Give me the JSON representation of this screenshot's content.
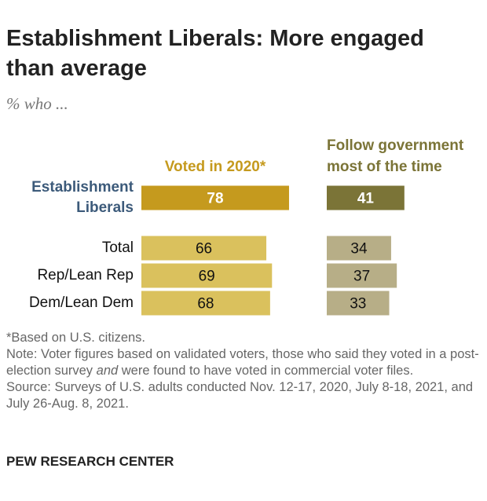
{
  "chart_data": {
    "type": "bar",
    "orientation": "horizontal",
    "title": "Establishment Liberals: More engaged than average",
    "subtitle": "% who ...",
    "categories": [
      "Establishment Liberals",
      "Total",
      "Rep/Lean Rep",
      "Dem/Lean Dem"
    ],
    "series": [
      {
        "name": "Voted in 2020*",
        "color": "#c59a1e",
        "colors": [
          "#c59a1e",
          "#dac15d",
          "#dac15d",
          "#dac15d"
        ],
        "values": [
          78,
          66,
          69,
          68
        ]
      },
      {
        "name": "Follow government most of the time",
        "color": "#7b7437",
        "colors": [
          "#7b7437",
          "#b7ae87",
          "#b7ae87",
          "#b7ae87"
        ],
        "values": [
          41,
          34,
          37,
          33
        ]
      }
    ],
    "footnote": "*Based on U.S. citizens.",
    "note": [
      "Note: Voter figures based on validated voters, those who said they voted in a post-election survey ",
      "and",
      " were found to have voted in commercial voter files."
    ],
    "source": "Source: Surveys of U.S. adults conducted Nov. 12-17, 2020, July 8-18, 2021, and July 26-Aug. 8, 2021.",
    "footer": "PEW RESEARCH CENTER"
  }
}
